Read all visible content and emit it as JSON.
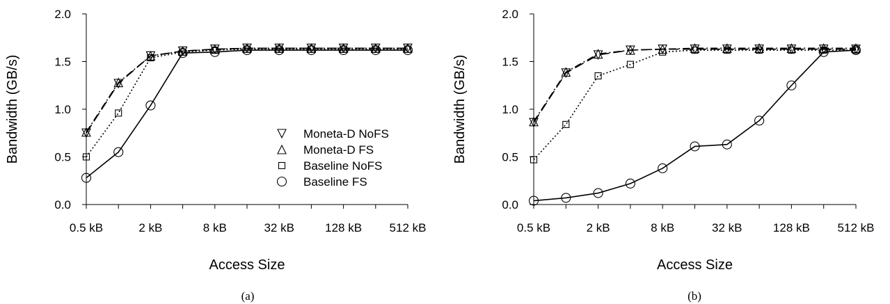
{
  "chart_data": [
    {
      "type": "line",
      "caption": "(a)",
      "xlabel": "Access Size",
      "ylabel": "Bandwidth (GB/s)",
      "ylim": [
        0,
        2.0
      ],
      "yticks": [
        "0.0",
        "0.5",
        "1.0",
        "1.5",
        "2.0"
      ],
      "x_categories": [
        "0.5 kB",
        "1 kB",
        "2 kB",
        "4 kB",
        "8 kB",
        "16 kB",
        "32 kB",
        "64 kB",
        "128 kB",
        "256 kB",
        "512 kB"
      ],
      "xtick_labels": [
        "0.5 kB",
        "2 kB",
        "8 kB",
        "32 kB",
        "128 kB",
        "512 kB"
      ],
      "grid": false,
      "legend_position": "center-right",
      "series": [
        {
          "name": "Moneta-D NoFS",
          "marker": "triangle-down",
          "line": "dashed",
          "values": [
            0.75,
            1.27,
            1.56,
            1.61,
            1.63,
            1.64,
            1.64,
            1.64,
            1.64,
            1.64,
            1.64
          ]
        },
        {
          "name": "Moneta-D FS",
          "marker": "triangle-up",
          "line": "dashdot",
          "values": [
            0.76,
            1.28,
            1.56,
            1.61,
            1.63,
            1.64,
            1.64,
            1.64,
            1.64,
            1.64,
            1.64
          ]
        },
        {
          "name": "Baseline NoFS",
          "marker": "square",
          "line": "dotted",
          "values": [
            0.5,
            0.96,
            1.54,
            1.6,
            1.62,
            1.63,
            1.63,
            1.63,
            1.63,
            1.63,
            1.63
          ]
        },
        {
          "name": "Baseline FS",
          "marker": "circle",
          "line": "solid",
          "values": [
            0.28,
            0.55,
            1.04,
            1.59,
            1.6,
            1.62,
            1.62,
            1.62,
            1.62,
            1.62,
            1.62
          ]
        }
      ]
    },
    {
      "type": "line",
      "caption": "(b)",
      "xlabel": "Access Size",
      "ylabel": "Bandwidth (GB/s)",
      "ylim": [
        0,
        2.0
      ],
      "yticks": [
        "0.0",
        "0.5",
        "1.0",
        "1.5",
        "2.0"
      ],
      "x_categories": [
        "0.5 kB",
        "1 kB",
        "2 kB",
        "4 kB",
        "8 kB",
        "16 kB",
        "32 kB",
        "64 kB",
        "128 kB",
        "256 kB",
        "512 kB"
      ],
      "xtick_labels": [
        "0.5 kB",
        "2 kB",
        "8 kB",
        "32 kB",
        "128 kB",
        "512 kB"
      ],
      "grid": false,
      "series": [
        {
          "name": "Moneta-D NoFS",
          "marker": "triangle-down",
          "line": "dashed",
          "values": [
            0.86,
            1.38,
            1.57,
            1.62,
            1.63,
            1.63,
            1.63,
            1.63,
            1.63,
            1.63,
            1.63
          ]
        },
        {
          "name": "Moneta-D FS",
          "marker": "triangle-up",
          "line": "dashdot",
          "values": [
            0.87,
            1.39,
            1.58,
            1.62,
            1.63,
            1.64,
            1.64,
            1.64,
            1.64,
            1.64,
            1.64
          ]
        },
        {
          "name": "Baseline NoFS",
          "marker": "square",
          "line": "dotted",
          "values": [
            0.47,
            0.84,
            1.35,
            1.47,
            1.6,
            1.62,
            1.62,
            1.62,
            1.62,
            1.62,
            1.62
          ]
        },
        {
          "name": "Baseline FS",
          "marker": "circle",
          "line": "solid",
          "values": [
            0.04,
            0.07,
            0.12,
            0.22,
            0.38,
            0.61,
            0.63,
            0.88,
            1.25,
            1.6,
            1.62
          ]
        }
      ]
    }
  ]
}
